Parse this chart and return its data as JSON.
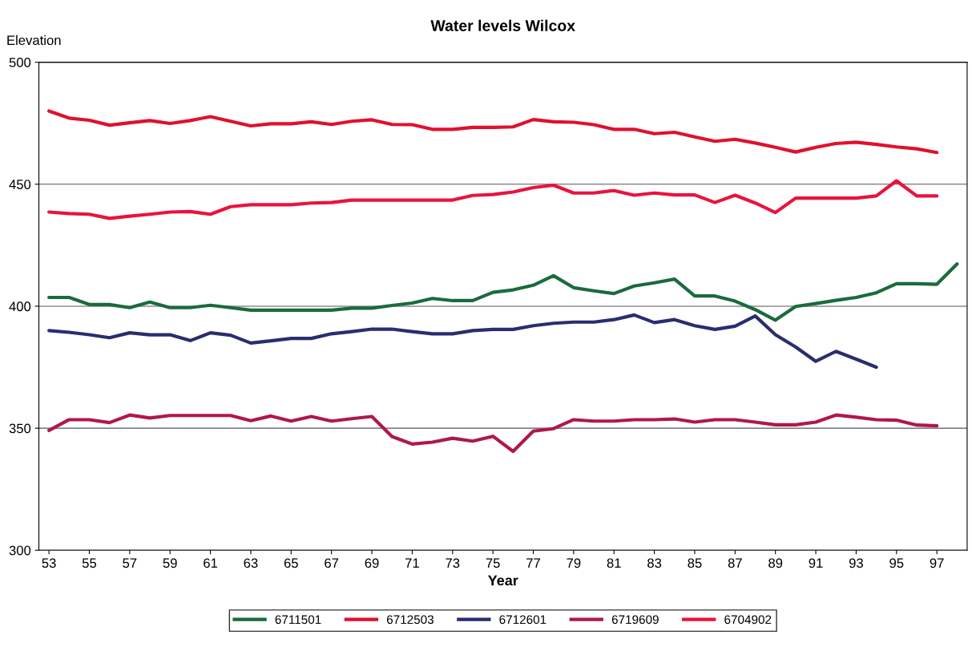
{
  "chart_data": {
    "type": "line",
    "title": "Water levels Wilcox",
    "xlabel": "Year",
    "ylabel": "Elevation",
    "categories": [
      "53",
      null,
      "55",
      null,
      "57",
      null,
      "59",
      null,
      "61",
      null,
      "63",
      null,
      "65",
      null,
      "67",
      null,
      "69",
      null,
      "71",
      null,
      "73",
      null,
      "75",
      null,
      "77",
      null,
      "79",
      null,
      "81",
      null,
      "83",
      null,
      "85",
      null,
      "87",
      null,
      "89",
      null,
      "91",
      null,
      "93",
      null,
      "95",
      null,
      "97",
      null
    ],
    "ylim": [
      300,
      500
    ],
    "yticks": [
      300,
      350,
      400,
      450,
      500
    ],
    "grid": "y",
    "legend": "bottom",
    "marker": "none",
    "line_style": "solid",
    "series": [
      {
        "name": "6711501",
        "color": "#1a6b3c",
        "values": [
          403.6,
          403.6,
          400.7,
          400.7,
          399.4,
          401.7,
          399.4,
          399.4,
          400.4,
          399.4,
          398.4,
          398.4,
          398.4,
          398.4,
          398.4,
          399.2,
          399.2,
          400.3,
          401.3,
          403.2,
          402.3,
          402.3,
          405.7,
          406.7,
          408.6,
          412.5,
          407.6,
          406.3,
          405.2,
          408.3,
          409.6,
          411.1,
          404.2,
          404.2,
          402.1,
          398.6,
          394.3,
          399.9,
          401.1,
          402.4,
          403.6,
          405.5,
          409.2,
          409.2,
          409.0,
          417.3
        ]
      },
      {
        "name": "6712503",
        "color": "#e0102e",
        "values": [
          480,
          477.1,
          476.2,
          474.2,
          475.2,
          476.1,
          474.9,
          476.1,
          477.7,
          475.8,
          473.9,
          474.8,
          474.8,
          475.6,
          474.5,
          475.8,
          476.4,
          474.5,
          474.4,
          472.5,
          472.5,
          473.3,
          473.3,
          473.5,
          476.5,
          475.6,
          475.4,
          474.4,
          472.5,
          472.5,
          470.7,
          471.3,
          469.4,
          467.6,
          468.4,
          466.9,
          465.1,
          463.2,
          465.1,
          466.7,
          467.2,
          466.3,
          465.3,
          464.5,
          463.0,
          null
        ]
      },
      {
        "name": "6712601",
        "color": "#2a2d6e",
        "values": [
          390.0,
          389.3,
          388.3,
          387.1,
          389.1,
          388.3,
          388.3,
          385.9,
          389.1,
          388.1,
          384.9,
          385.8,
          386.8,
          386.8,
          388.7,
          389.6,
          390.6,
          390.6,
          389.6,
          388.7,
          388.7,
          390.0,
          390.5,
          390.5,
          392.0,
          393.0,
          393.5,
          393.5,
          394.5,
          396.4,
          393.3,
          394.5,
          392.0,
          390.5,
          391.8,
          396.0,
          388.3,
          383.3,
          377.4,
          381.5,
          378.3,
          375.0,
          null,
          null,
          null,
          null
        ]
      },
      {
        "name": "6719609",
        "color": "#b0184a",
        "values": [
          349.1,
          353.5,
          353.5,
          352.3,
          355.4,
          354.2,
          355.2,
          355.2,
          355.2,
          355.2,
          353.1,
          355.0,
          352.9,
          354.8,
          352.9,
          353.9,
          354.8,
          346.6,
          343.5,
          344.3,
          345.9,
          344.7,
          346.7,
          340.5,
          348.8,
          349.8,
          353.5,
          352.9,
          352.9,
          353.5,
          353.5,
          353.8,
          352.5,
          353.5,
          353.5,
          352.5,
          351.4,
          351.4,
          352.5,
          355.4,
          354.5,
          353.5,
          353.3,
          351.3,
          351.0,
          null
        ]
      },
      {
        "name": "6704902",
        "color": "#e8143c",
        "values": [
          438.6,
          438.0,
          437.7,
          436.0,
          436.9,
          437.7,
          438.6,
          438.8,
          437.7,
          440.8,
          441.6,
          441.6,
          441.6,
          442.3,
          442.5,
          443.5,
          443.5,
          443.5,
          443.5,
          443.5,
          443.5,
          445.4,
          445.8,
          446.8,
          448.6,
          449.6,
          446.4,
          446.4,
          447.4,
          445.5,
          446.4,
          445.6,
          445.6,
          442.5,
          445.5,
          442.3,
          438.4,
          444.3,
          444.3,
          444.3,
          444.3,
          445.2,
          451.4,
          445.2,
          445.2,
          null
        ]
      }
    ]
  }
}
